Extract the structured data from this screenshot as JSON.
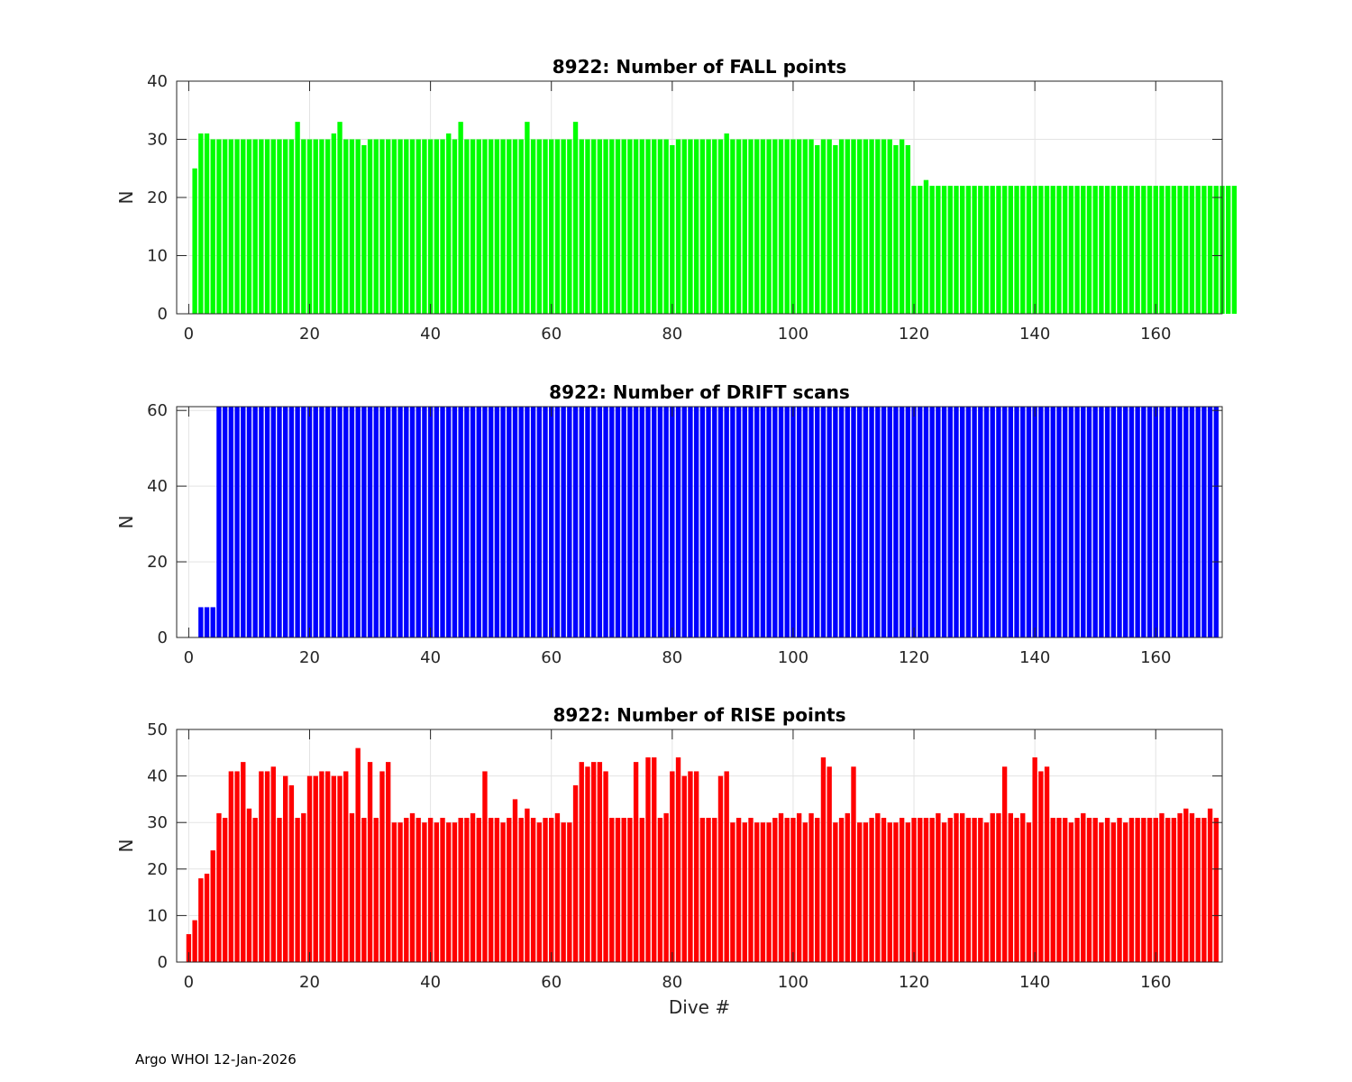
{
  "footer": "Argo WHOI 12-Jan-2026",
  "colors": {
    "fall": "#00ff00",
    "drift": "#0000ff",
    "rise": "#ff0000",
    "grid": "#e3e3e3",
    "axis": "#262626"
  },
  "chart_data": [
    {
      "type": "bar",
      "title": "8922: Number of FALL points",
      "xlabel": "",
      "ylabel": "N",
      "xlim": [
        -2,
        171
      ],
      "ylim": [
        0,
        40
      ],
      "xticks": [
        0,
        20,
        40,
        60,
        80,
        100,
        120,
        140,
        160
      ],
      "yticks": [
        0,
        10,
        20,
        30,
        40
      ],
      "grid": true,
      "color_key": "fall",
      "x_start": 1,
      "values": [
        25,
        31,
        31,
        30,
        30,
        30,
        30,
        30,
        30,
        30,
        30,
        30,
        30,
        30,
        30,
        30,
        30,
        33,
        30,
        30,
        30,
        30,
        30,
        31,
        33,
        30,
        30,
        30,
        29,
        30,
        30,
        30,
        30,
        30,
        30,
        30,
        30,
        30,
        30,
        30,
        30,
        30,
        31,
        30,
        33,
        30,
        30,
        30,
        30,
        30,
        30,
        30,
        30,
        30,
        30,
        33,
        30,
        30,
        30,
        30,
        30,
        30,
        30,
        33,
        30,
        30,
        30,
        30,
        30,
        30,
        30,
        30,
        30,
        30,
        30,
        30,
        30,
        30,
        30,
        29,
        30,
        30,
        30,
        30,
        30,
        30,
        30,
        30,
        31,
        30,
        30,
        30,
        30,
        30,
        30,
        30,
        30,
        30,
        30,
        30,
        30,
        30,
        30,
        29,
        30,
        30,
        29,
        30,
        30,
        30,
        30,
        30,
        30,
        30,
        30,
        30,
        29,
        30,
        29,
        22,
        22,
        23,
        22,
        22,
        22,
        22,
        22,
        22,
        22,
        22,
        22,
        22,
        22,
        22,
        22,
        22,
        22,
        22,
        22,
        22,
        22,
        22,
        22,
        22,
        22,
        22,
        22,
        22,
        22,
        22,
        22,
        22,
        22,
        22,
        22,
        22,
        22,
        22,
        22,
        22,
        22,
        22,
        22,
        22,
        22,
        22,
        22,
        22,
        22,
        22,
        22,
        22,
        22
      ]
    },
    {
      "type": "bar",
      "title": "8922: Number of DRIFT scans",
      "xlabel": "",
      "ylabel": "N",
      "xlim": [
        -2,
        171
      ],
      "ylim": [
        0,
        61
      ],
      "xticks": [
        0,
        20,
        40,
        60,
        80,
        100,
        120,
        140,
        160
      ],
      "yticks": [
        0,
        20,
        40,
        60
      ],
      "grid": true,
      "color_key": "drift",
      "x_start": 2,
      "values": [
        8,
        8,
        8,
        61,
        61,
        61,
        61,
        61,
        61,
        61,
        61,
        61,
        61,
        61,
        61,
        61,
        61,
        61,
        61,
        61,
        61,
        61,
        61,
        61,
        61,
        61,
        61,
        61,
        61,
        61,
        61,
        61,
        61,
        61,
        61,
        61,
        61,
        61,
        61,
        61,
        61,
        61,
        61,
        61,
        61,
        61,
        61,
        61,
        61,
        61,
        61,
        61,
        61,
        61,
        61,
        61,
        61,
        61,
        61,
        61,
        61,
        61,
        61,
        61,
        61,
        61,
        61,
        61,
        61,
        61,
        61,
        61,
        61,
        61,
        61,
        61,
        61,
        61,
        61,
        61,
        61,
        61,
        61,
        61,
        61,
        61,
        61,
        61,
        61,
        61,
        61,
        61,
        61,
        61,
        61,
        61,
        61,
        61,
        61,
        61,
        61,
        61,
        61,
        61,
        61,
        61,
        61,
        61,
        61,
        61,
        61,
        61,
        61,
        61,
        61,
        61,
        61,
        61,
        61,
        61,
        61,
        61,
        61,
        61,
        61,
        61,
        61,
        61,
        61,
        61,
        61,
        61,
        61,
        61,
        61,
        61,
        61,
        61,
        61,
        61,
        61,
        61,
        61,
        61,
        61,
        61,
        61,
        61,
        61,
        61,
        61,
        61,
        61,
        61,
        61,
        61,
        61,
        61,
        61,
        61,
        61,
        61,
        61,
        61,
        61,
        61,
        61,
        61,
        61
      ]
    },
    {
      "type": "bar",
      "title": "8922: Number of RISE points",
      "xlabel": "Dive #",
      "ylabel": "N",
      "xlim": [
        -2,
        171
      ],
      "ylim": [
        0,
        50
      ],
      "xticks": [
        0,
        20,
        40,
        60,
        80,
        100,
        120,
        140,
        160
      ],
      "yticks": [
        0,
        10,
        20,
        30,
        40,
        50
      ],
      "grid": true,
      "color_key": "rise",
      "x_start": 0,
      "values": [
        6,
        9,
        18,
        19,
        24,
        32,
        31,
        41,
        41,
        43,
        33,
        31,
        41,
        41,
        42,
        31,
        40,
        38,
        31,
        32,
        40,
        40,
        41,
        41,
        40,
        40,
        41,
        32,
        46,
        31,
        43,
        31,
        41,
        43,
        30,
        30,
        31,
        32,
        31,
        30,
        31,
        30,
        31,
        30,
        30,
        31,
        31,
        32,
        31,
        41,
        31,
        31,
        30,
        31,
        35,
        31,
        33,
        31,
        30,
        31,
        31,
        32,
        30,
        30,
        38,
        43,
        42,
        43,
        43,
        41,
        31,
        31,
        31,
        31,
        43,
        31,
        44,
        44,
        31,
        32,
        41,
        44,
        40,
        41,
        41,
        31,
        31,
        31,
        40,
        41,
        30,
        31,
        30,
        31,
        30,
        30,
        30,
        31,
        32,
        31,
        31,
        32,
        30,
        32,
        31,
        44,
        42,
        30,
        31,
        32,
        42,
        30,
        30,
        31,
        32,
        31,
        30,
        30,
        31,
        30,
        31,
        31,
        31,
        31,
        32,
        30,
        31,
        32,
        32,
        31,
        31,
        31,
        30,
        32,
        32,
        42,
        32,
        31,
        32,
        30,
        44,
        41,
        42,
        31,
        31,
        31,
        30,
        31,
        32,
        31,
        31,
        30,
        31,
        30,
        31,
        30,
        31,
        31,
        31,
        31,
        31,
        32,
        31,
        31,
        32,
        33,
        32,
        31,
        31,
        33,
        31
      ]
    }
  ]
}
